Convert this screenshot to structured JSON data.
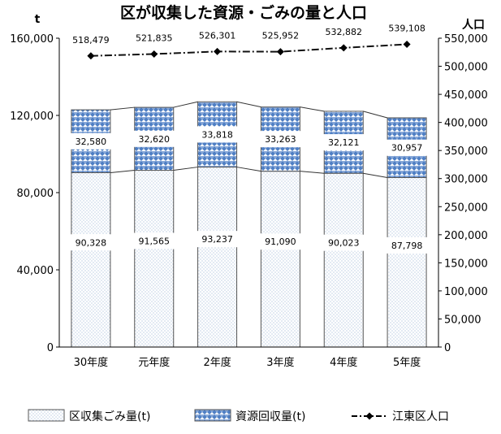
{
  "chart_data": {
    "type": "bar",
    "title": "区が収集した資源・ごみの量と人口",
    "y_left_unit": "t",
    "y_right_unit": "人口",
    "categories": [
      "30年度",
      "元年度",
      "2年度",
      "3年度",
      "4年度",
      "5年度"
    ],
    "ylim_left": [
      0,
      160000
    ],
    "ylim_right": [
      0,
      550000
    ],
    "yticks_left": [
      "0",
      "40,000",
      "80,000",
      "120,000",
      "160,000"
    ],
    "yticks_right": [
      "0",
      "50,000",
      "100,000",
      "150,000",
      "200,000",
      "250,000",
      "300,000",
      "350,000",
      "400,000",
      "450,000",
      "500,000",
      "550,000"
    ],
    "stacked": true,
    "grid": false,
    "legend_position": "bottom",
    "series": [
      {
        "name": "区収集ごみ量(t)",
        "axis": "left",
        "kind": "bar",
        "values": [
          90328,
          91565,
          93237,
          91090,
          90023,
          87798
        ],
        "labels": [
          "90,328",
          "91,565",
          "93,237",
          "91,090",
          "90,023",
          "87,798"
        ],
        "fill": "dotted-light-blue"
      },
      {
        "name": "資源回収量(t)",
        "axis": "left",
        "kind": "bar",
        "values": [
          32580,
          32620,
          33818,
          33263,
          32121,
          30957
        ],
        "labels": [
          "32,580",
          "32,620",
          "33,818",
          "33,263",
          "32,121",
          "30,957"
        ],
        "fill": "blue-checker"
      },
      {
        "name": "江東区人口",
        "axis": "right",
        "kind": "line",
        "values": [
          518479,
          521835,
          526301,
          525952,
          532882,
          539108
        ],
        "labels": [
          "518,479",
          "521,835",
          "526,301",
          "525,952",
          "532,882",
          "539,108"
        ],
        "line_style": "dash-dot",
        "marker": "diamond"
      }
    ],
    "colors": {
      "bar_outline": "#555555",
      "dots": "#9fb6d6",
      "checker": "#4f7fc4",
      "line": "#111111"
    }
  }
}
